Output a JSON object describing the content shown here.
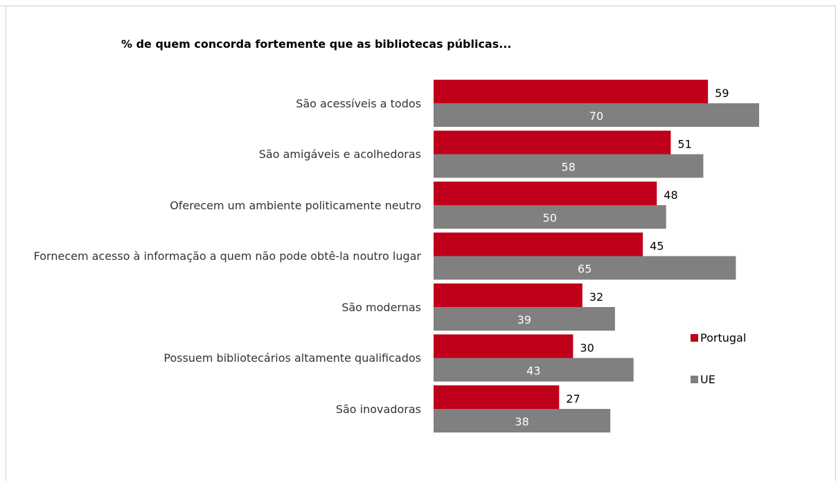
{
  "chart_data": {
    "type": "bar",
    "orientation": "horizontal",
    "title": "% de quem concorda fortemente que as bibliotecas públicas...",
    "categories": [
      "São acessíveis a todos",
      "São amigáveis e acolhedoras",
      "Oferecem um ambiente politicamente neutro",
      "Fornecem acesso à informação a quem não pode obtê-la noutro lugar",
      "São modernas",
      "Possuem bibliotecários altamente qualificados",
      "São inovadoras"
    ],
    "series": [
      {
        "name": "Portugal",
        "values": [
          59,
          51,
          48,
          45,
          32,
          30,
          27
        ],
        "color": "#c0001a"
      },
      {
        "name": "UE",
        "values": [
          70,
          58,
          50,
          65,
          39,
          43,
          38
        ],
        "color": "#808080"
      }
    ],
    "legend_position": "right",
    "grid": false
  }
}
